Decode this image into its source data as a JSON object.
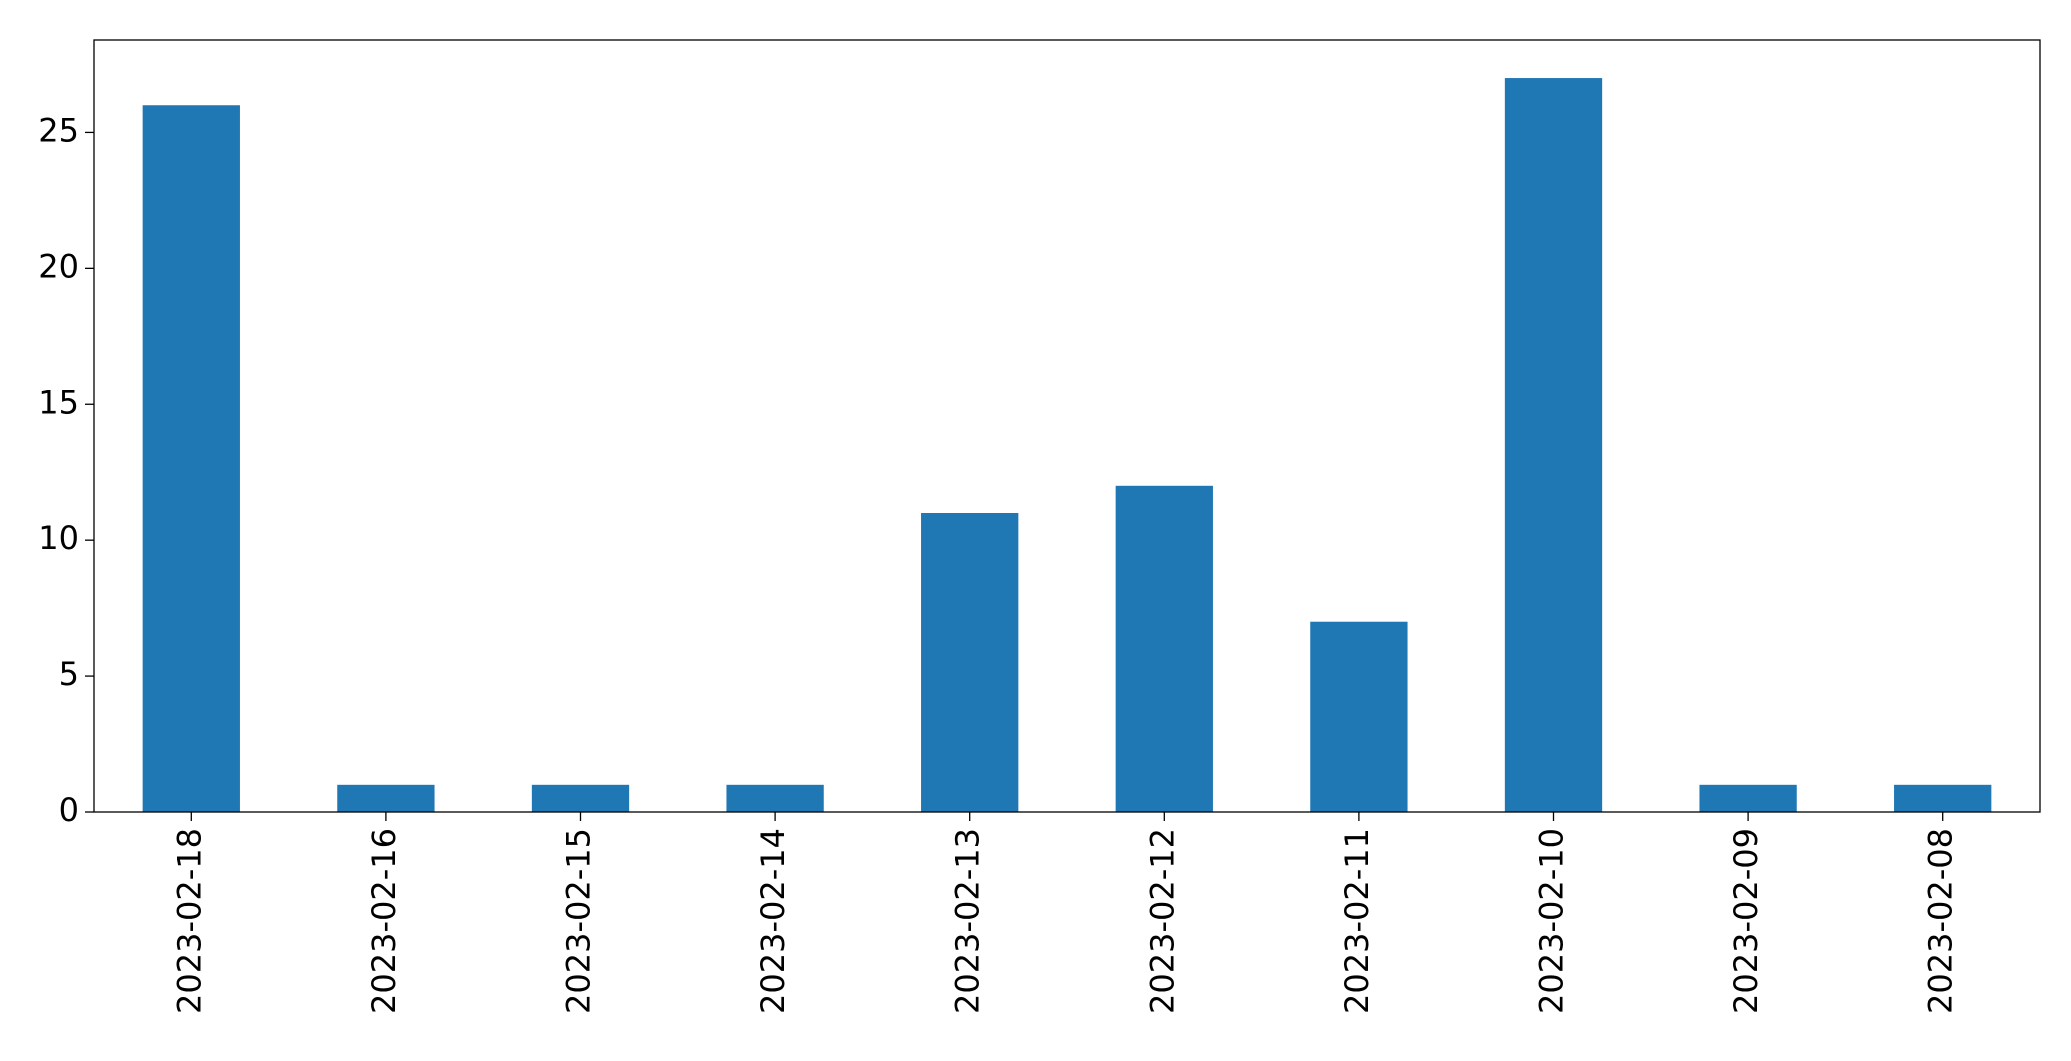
{
  "chart_data": {
    "type": "bar",
    "categories": [
      "2023-02-18",
      "2023-02-16",
      "2023-02-15",
      "2023-02-14",
      "2023-02-13",
      "2023-02-12",
      "2023-02-11",
      "2023-02-10",
      "2023-02-09",
      "2023-02-08"
    ],
    "values": [
      26,
      1,
      1,
      1,
      11,
      12,
      7,
      27,
      1,
      1
    ],
    "color": "#1f77b4",
    "ylim": [
      0,
      28.4
    ],
    "yticks": [
      0,
      5,
      10,
      15,
      20,
      25
    ],
    "grid": false
  }
}
